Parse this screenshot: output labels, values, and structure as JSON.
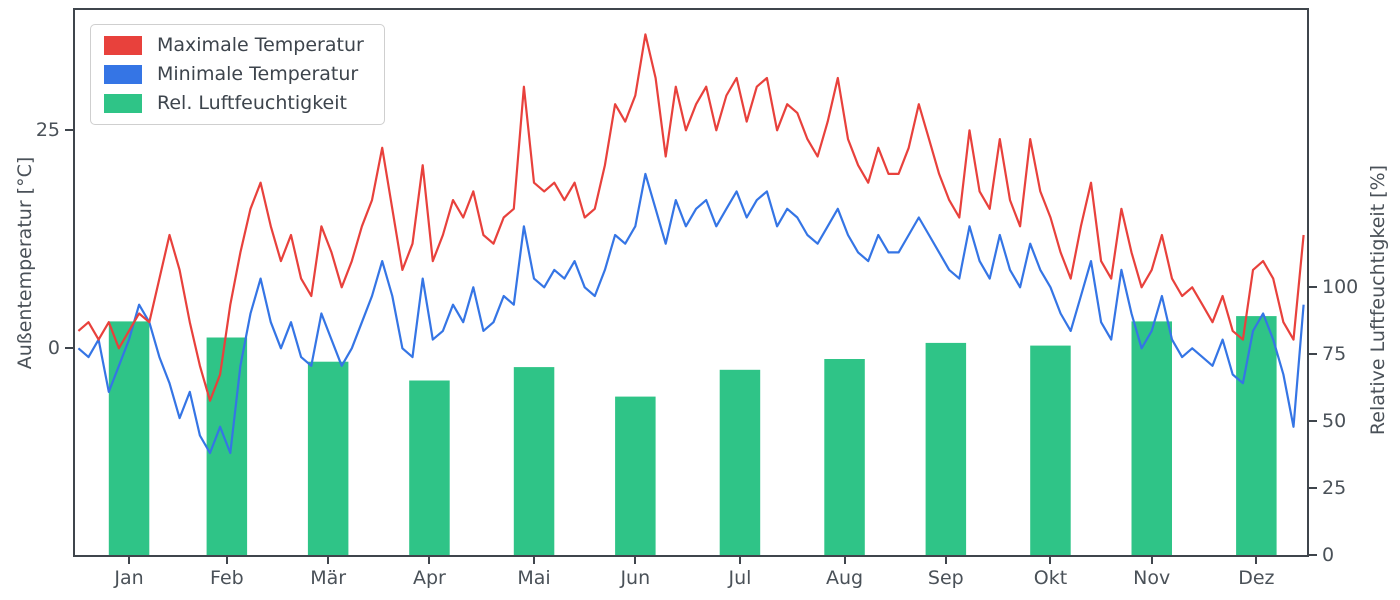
{
  "legend": {
    "items": [
      {
        "label": "Maximale Temperatur",
        "color": "#e8413c"
      },
      {
        "label": "Minimale Temperatur",
        "color": "#3575e5"
      },
      {
        "label": "Rel. Luftfeuchtigkeit",
        "color": "#2fc487"
      }
    ]
  },
  "axes": {
    "left": {
      "label": "Außentemperatur [°C]",
      "tick_labels": [
        "0",
        "25"
      ]
    },
    "right": {
      "label": "Relative Luftfeuchtigkeit [%]",
      "tick_labels": [
        "0",
        "25",
        "50",
        "75",
        "100"
      ]
    },
    "x": {
      "tick_labels": [
        "Jan",
        "Feb",
        "Mär",
        "Apr",
        "Mai",
        "Jun",
        "Jul",
        "Aug",
        "Sep",
        "Okt",
        "Nov",
        "Dez"
      ]
    }
  },
  "chart_data": {
    "type": "line",
    "description": "Two daily temperature line series on the left °C axis plus monthly relative-humidity bars on the right % axis",
    "x_unit": "day of year",
    "x_days": {
      "start": 1,
      "step": 3,
      "count": 122
    },
    "series": [
      {
        "name": "Maximale Temperatur",
        "type": "line",
        "axis": "left",
        "color": "#e8413c",
        "values": [
          2,
          3,
          1,
          3,
          0,
          2,
          4,
          3,
          8,
          13,
          9,
          3,
          -2,
          -6,
          -3,
          5,
          11,
          16,
          19,
          14,
          10,
          13,
          8,
          6,
          14,
          11,
          7,
          10,
          14,
          17,
          23,
          16,
          9,
          12,
          21,
          10,
          13,
          17,
          15,
          18,
          13,
          12,
          15,
          16,
          30,
          19,
          18,
          19,
          17,
          19,
          15,
          16,
          21,
          28,
          26,
          29,
          36,
          31,
          22,
          30,
          25,
          28,
          30,
          25,
          29,
          31,
          26,
          30,
          31,
          25,
          28,
          27,
          24,
          22,
          26,
          31,
          24,
          21,
          19,
          23,
          20,
          20,
          23,
          28,
          24,
          20,
          17,
          15,
          25,
          18,
          16,
          24,
          17,
          14,
          24,
          18,
          15,
          11,
          8,
          14,
          19,
          10,
          8,
          16,
          11,
          7,
          9,
          13,
          8,
          6,
          7,
          5,
          3,
          6,
          2,
          1,
          9,
          10,
          8,
          3,
          1,
          13
        ]
      },
      {
        "name": "Minimale Temperatur",
        "type": "line",
        "axis": "left",
        "color": "#3575e5",
        "values": [
          0,
          -1,
          1,
          -5,
          -2,
          1,
          5,
          3,
          -1,
          -4,
          -8,
          -5,
          -10,
          -12,
          -9,
          -12,
          -2,
          4,
          8,
          3,
          0,
          3,
          -1,
          -2,
          4,
          1,
          -2,
          0,
          3,
          6,
          10,
          6,
          0,
          -1,
          8,
          1,
          2,
          5,
          3,
          7,
          2,
          3,
          6,
          5,
          14,
          8,
          7,
          9,
          8,
          10,
          7,
          6,
          9,
          13,
          12,
          14,
          20,
          16,
          12,
          17,
          14,
          16,
          17,
          14,
          16,
          18,
          15,
          17,
          18,
          14,
          16,
          15,
          13,
          12,
          14,
          16,
          13,
          11,
          10,
          13,
          11,
          11,
          13,
          15,
          13,
          11,
          9,
          8,
          14,
          10,
          8,
          13,
          9,
          7,
          12,
          9,
          7,
          4,
          2,
          6,
          10,
          3,
          1,
          9,
          4,
          0,
          2,
          6,
          1,
          -1,
          0,
          -1,
          -2,
          1,
          -3,
          -4,
          2,
          4,
          1,
          -3,
          -9,
          5
        ]
      }
    ],
    "bars": {
      "name": "Rel. Luftfeuchtigkeit",
      "type": "bar",
      "axis": "right",
      "color": "#2fc487",
      "month_centers_day": [
        16,
        45,
        75,
        105,
        136,
        166,
        197,
        228,
        258,
        289,
        319,
        350
      ],
      "width_days": 12,
      "values": [
        87,
        81,
        72,
        65,
        70,
        59,
        69,
        73,
        79,
        78,
        87,
        89
      ]
    },
    "left_axis": {
      "label": "Außentemperatur [°C]",
      "range": [
        -23.7,
        38.8
      ],
      "ticks": [
        0,
        25
      ]
    },
    "right_axis": {
      "label": "Relative Luftfeuchtigkeit [%]",
      "range": [
        0,
        203
      ],
      "ticks": [
        0,
        25,
        50,
        75,
        100
      ]
    },
    "x_axis": {
      "months": [
        "Jan",
        "Feb",
        "Mär",
        "Apr",
        "Mai",
        "Jun",
        "Jul",
        "Aug",
        "Sep",
        "Okt",
        "Nov",
        "Dez"
      ],
      "tick_days": [
        16,
        45,
        75,
        105,
        136,
        166,
        197,
        228,
        258,
        289,
        319,
        350
      ]
    },
    "grid": false,
    "legend_position": "upper left"
  }
}
